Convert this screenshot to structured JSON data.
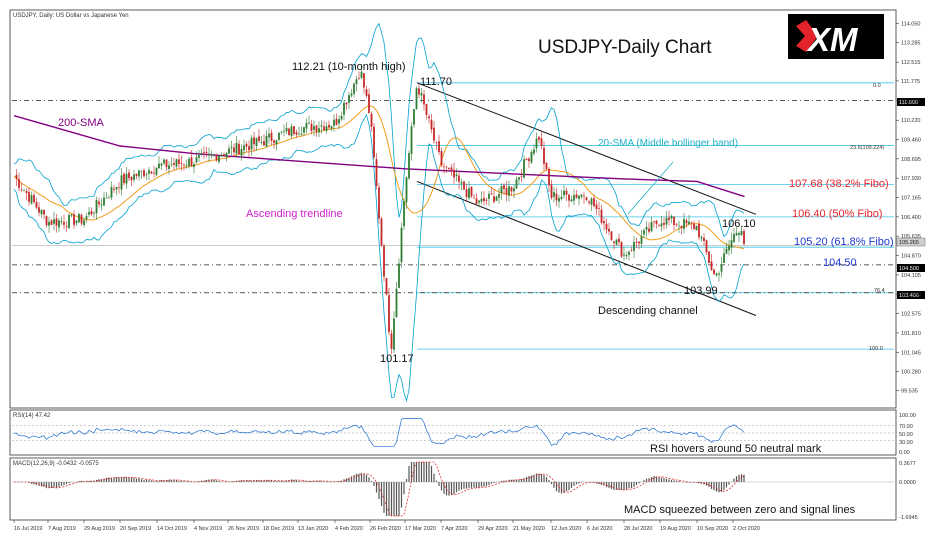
{
  "chart_data": {
    "type": "candlestick",
    "header": "USDJPY, Daily:  US Dollar vs Japanese Yen",
    "title": "USDJPY-Daily Chart",
    "logo_text": "XM",
    "ylim": [
      99.0,
      114.5
    ],
    "price_ticks": [
      "114.050",
      "113.285",
      "112.515",
      "111.775",
      "111.000",
      "110.220",
      "109.460",
      "108.695",
      "107.930",
      "107.165",
      "106.400",
      "105.635",
      "104.870",
      "104.105",
      "103.340",
      "102.575",
      "101.810",
      "101.045",
      "100.280",
      "99.535"
    ],
    "current_price": "105.265",
    "x_labels": [
      "16 Jul 2019",
      "7 Aug 2019",
      "29 Aug 2019",
      "20 Sep 2019",
      "14 Oct 2019",
      "4 Nov 2019",
      "26 Nov 2019",
      "18 Dec 2019",
      "13 Jan 2020",
      "4 Feb 2020",
      "26 Feb 2020",
      "17 Mar 2020",
      "7 Apr 2020",
      "29 Apr 2020",
      "21 May 2020",
      "12 Jun 2020",
      "6 Jul 2020",
      "28 Jul 2020",
      "19 Aug 2020",
      "10 Sep 2020",
      "2 Oct 2020"
    ],
    "price_series": [
      {
        "date": "16 Jul 2019",
        "value": 108.0
      },
      {
        "date": "7 Aug 2019",
        "value": 106.2
      },
      {
        "date": "29 Aug 2019",
        "value": 106.3
      },
      {
        "date": "20 Sep 2019",
        "value": 107.8
      },
      {
        "date": "14 Oct 2019",
        "value": 108.4
      },
      {
        "date": "4 Nov 2019",
        "value": 108.6
      },
      {
        "date": "26 Nov 2019",
        "value": 109.0
      },
      {
        "date": "18 Dec 2019",
        "value": 109.4
      },
      {
        "date": "13 Jan 2020",
        "value": 109.9
      },
      {
        "date": "4 Feb 2020",
        "value": 110.1
      },
      {
        "date": "20 Feb 2020",
        "value": 112.21
      },
      {
        "date": "26 Feb 2020",
        "value": 110.4
      },
      {
        "date": "9 Mar 2020",
        "value": 101.17
      },
      {
        "date": "17 Mar 2020",
        "value": 107.5
      },
      {
        "date": "24 Mar 2020",
        "value": 111.7
      },
      {
        "date": "7 Apr 2020",
        "value": 108.5
      },
      {
        "date": "29 Apr 2020",
        "value": 106.9
      },
      {
        "date": "21 May 2020",
        "value": 107.6
      },
      {
        "date": "5 Jun 2020",
        "value": 109.6
      },
      {
        "date": "12 Jun 2020",
        "value": 107.2
      },
      {
        "date": "6 Jul 2020",
        "value": 107.3
      },
      {
        "date": "28 Jul 2020",
        "value": 104.9
      },
      {
        "date": "19 Aug 2020",
        "value": 106.3
      },
      {
        "date": "10 Sep 2020",
        "value": 106.0
      },
      {
        "date": "21 Sep 2020",
        "value": 103.99
      },
      {
        "date": "2 Oct 2020",
        "value": 105.6
      },
      {
        "date": "7 Oct 2020",
        "value": 106.1
      },
      {
        "date": "9 Oct 2020",
        "value": 105.27
      }
    ],
    "sma200": {
      "label": "200-SMA",
      "color": "#800080",
      "points": [
        {
          "date": "16 Jul 2019",
          "value": 110.4
        },
        {
          "date": "20 Sep 2019",
          "value": 109.2
        },
        {
          "date": "4 Nov 2019",
          "value": 108.9
        },
        {
          "date": "13 Jan 2020",
          "value": 108.6
        },
        {
          "date": "17 Mar 2020",
          "value": 108.3
        },
        {
          "date": "21 May 2020",
          "value": 108.1
        },
        {
          "date": "28 Jul 2020",
          "value": 107.9
        },
        {
          "date": "10 Sep 2020",
          "value": 107.8
        },
        {
          "date": "9 Oct 2020",
          "value": 107.2
        }
      ]
    },
    "fibo_levels": [
      {
        "label": "0.0",
        "value": 111.7,
        "line": "cyan"
      },
      {
        "label": "23.6(109.224)",
        "value": 109.224,
        "line": "cyan"
      },
      {
        "label": "107.68 (38.2% Fibo)",
        "value": 107.68,
        "line": "cyan",
        "color": "#e8262b"
      },
      {
        "label": "106.40 (50% Fibo)",
        "value": 106.4,
        "line": "cyan",
        "color": "#e8262b"
      },
      {
        "label": "105.20 (61.8% Fibo)",
        "value": 105.2,
        "line": "cyan",
        "color": "#1f3bd1"
      },
      {
        "label": "76.4",
        "value": 103.4,
        "line": "cyan"
      },
      {
        "label": "100.0",
        "value": 101.17,
        "line": "cyan"
      }
    ],
    "horizontal_levels": [
      {
        "value": 111.0,
        "box": "111.000",
        "style": "dashed"
      },
      {
        "value": 104.5,
        "box": "104.500",
        "style": "dashed",
        "label": "104.50"
      },
      {
        "value": 103.4,
        "box": "103.406",
        "style": "dashed"
      }
    ],
    "annotations": {
      "high": "112.21 (10-month high)",
      "low": "101.17",
      "peak": "111.70",
      "recent_high": "106.10",
      "recent_low": "103.99",
      "sma200": "200-SMA",
      "bollinger": "20-SMA (Middle bollinger band)",
      "asc_trendline": "Ascending trendline",
      "desc_channel": "Descending channel"
    },
    "rsi": {
      "header": "RSI(14) 47.42",
      "levels": [
        "100.00",
        "70.00",
        "50.00",
        "30.00",
        "0.00"
      ],
      "note": "RSI hovers around 50 neutral mark"
    },
    "macd": {
      "header": "MACD(12,26,9) -0.0432 -0.0575",
      "scale": [
        "0.3677",
        "0.0000",
        "-1.6945"
      ],
      "note": "MACD squeezed between zero and signal lines"
    },
    "colors": {
      "up": "#2e7d32",
      "down": "#c62828",
      "sma20": "#f29b1d",
      "sma200": "#800080",
      "bollinger": "#00a0d0",
      "fibo": "#3fc5e8",
      "trend": "#111111"
    }
  }
}
